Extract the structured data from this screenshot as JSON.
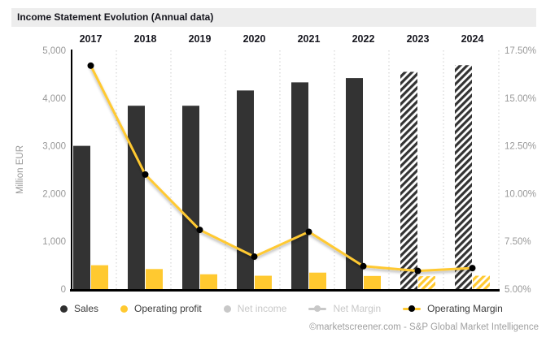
{
  "window": {
    "title": "Income Statement Evolution (Annual data)",
    "attribution": "©marketscreener.com - S&P Global Market Intelligence"
  },
  "colors": {
    "bar_dark": "#333333",
    "bar_yellow": "#ffc930",
    "line_yellow": "#ffc930",
    "line_marker": "#000000",
    "axis_text": "#999999",
    "gridline": "#cccccc",
    "year_text": "#17171f",
    "inactive_gray": "#c8c8c8",
    "active_label": "#3b3b3b",
    "title_band": "#ededed"
  },
  "legend": {
    "items": [
      {
        "label": "Sales",
        "marker": "dot",
        "color": "#2f2f2f",
        "active": true
      },
      {
        "label": "Operating profit",
        "marker": "dot",
        "color": "#ffc930",
        "active": true
      },
      {
        "label": "Net income",
        "marker": "dot",
        "color": "#c8c8c8",
        "active": false
      },
      {
        "label": "Net Margin",
        "marker": "line",
        "line_color": "#c8c8c8",
        "point_color": "#c8c8c8",
        "active": false
      },
      {
        "label": "Operating Margin",
        "marker": "line",
        "line_color": "#ffc930",
        "point_color": "#000000",
        "active": true
      }
    ]
  },
  "chart_data": {
    "type": "bar+line combo, dual axis",
    "categories": [
      "2017",
      "2018",
      "2019",
      "2020",
      "2021",
      "2022",
      "2023",
      "2024"
    ],
    "estimate_start_index": 6,
    "series": [
      {
        "name": "Sales",
        "type": "bar",
        "axis": "left",
        "unit": "Million EUR",
        "values": [
          3000,
          3840,
          3840,
          4160,
          4330,
          4420,
          4550,
          4690
        ]
      },
      {
        "name": "Operating profit",
        "type": "bar",
        "axis": "left",
        "unit": "Million EUR",
        "values": [
          500,
          420,
          310,
          280,
          345,
          275,
          270,
          280
        ]
      },
      {
        "name": "Operating Margin",
        "type": "line",
        "axis": "right",
        "unit": "%",
        "values": [
          16.7,
          11.0,
          8.1,
          6.7,
          8.0,
          6.2,
          5.95,
          6.1
        ]
      }
    ],
    "hidden_series": [
      "Net income",
      "Net Margin"
    ],
    "left_axis": {
      "label": "Million EUR",
      "min": 0,
      "max": 5000,
      "tick_values": [
        0,
        1000,
        2000,
        3000,
        4000,
        5000
      ],
      "tick_labels": [
        "0",
        "1,000",
        "2,000",
        "3,000",
        "4,000",
        "5,000"
      ]
    },
    "right_axis": {
      "min": 5,
      "max": 17.5,
      "tick_values": [
        5,
        7.5,
        10,
        12.5,
        15,
        17.5
      ],
      "tick_labels": [
        "5.00%",
        "7.50%",
        "10.00%",
        "12.50%",
        "15.00%",
        "17.50%"
      ]
    },
    "grid": "dotted vertical separators between year groups",
    "note": "2023 and 2024 bars are hatched (estimates)"
  }
}
